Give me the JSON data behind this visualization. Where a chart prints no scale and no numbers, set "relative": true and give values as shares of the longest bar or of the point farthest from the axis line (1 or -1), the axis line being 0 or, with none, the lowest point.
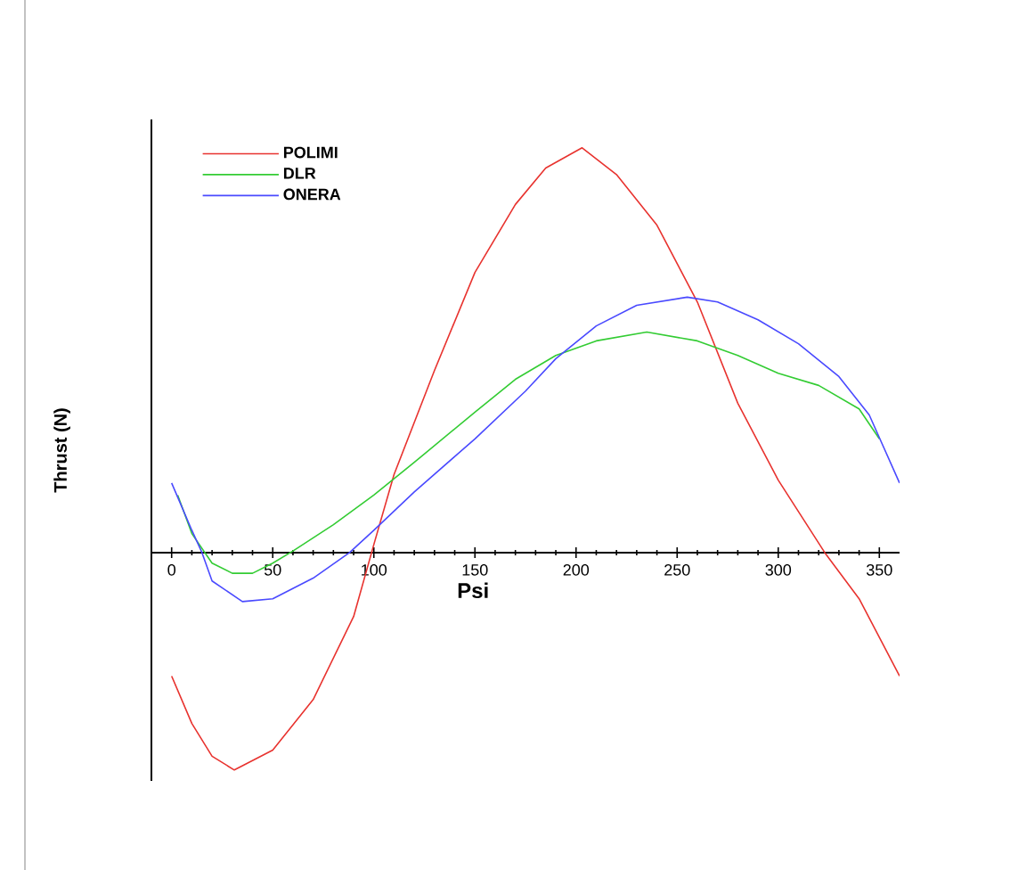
{
  "chart_data": {
    "type": "line",
    "xlabel": "Psi",
    "ylabel": "Thrust (N)",
    "relative": true,
    "xlim": [
      -10,
      360
    ],
    "xticks": [
      0,
      50,
      100,
      150,
      200,
      250,
      300,
      350
    ],
    "legend": "top left",
    "marker": "none",
    "line_style": "solid",
    "grid": false,
    "series": [
      {
        "name": "POLIMI",
        "color": "#e8332f",
        "x": [
          0,
          10,
          20,
          31,
          50,
          70,
          90,
          100,
          110,
          130,
          150,
          170,
          185,
          203,
          220,
          240,
          260,
          280,
          300,
          323,
          340,
          360
        ],
        "values": [
          -0.305,
          -0.422,
          -0.503,
          -0.537,
          -0.488,
          -0.363,
          -0.158,
          0.02,
          0.193,
          0.45,
          0.692,
          0.86,
          0.95,
          1.0,
          0.934,
          0.809,
          0.619,
          0.369,
          0.179,
          0.0,
          -0.114,
          -0.305
        ]
      },
      {
        "name": "DLR",
        "color": "#33cc33",
        "x": [
          3,
          10,
          20,
          30,
          40,
          50,
          60,
          80,
          100,
          120,
          150,
          170,
          190,
          210,
          235,
          260,
          280,
          300,
          320,
          340,
          350
        ],
        "values": [
          0.142,
          0.047,
          -0.026,
          -0.051,
          -0.051,
          -0.026,
          0.004,
          0.069,
          0.142,
          0.223,
          0.347,
          0.428,
          0.487,
          0.523,
          0.545,
          0.523,
          0.487,
          0.443,
          0.413,
          0.355,
          0.281
        ]
      },
      {
        "name": "ONERA",
        "color": "#4a4aff",
        "x": [
          0,
          10,
          15,
          20,
          35,
          50,
          70,
          88,
          100,
          120,
          150,
          175,
          190,
          210,
          230,
          255,
          270,
          290,
          310,
          330,
          345,
          360
        ],
        "values": [
          0.172,
          0.055,
          0.0,
          -0.07,
          -0.121,
          -0.114,
          -0.063,
          0.0,
          0.055,
          0.15,
          0.281,
          0.399,
          0.479,
          0.56,
          0.611,
          0.631,
          0.619,
          0.575,
          0.516,
          0.435,
          0.34,
          0.172
        ]
      }
    ]
  }
}
